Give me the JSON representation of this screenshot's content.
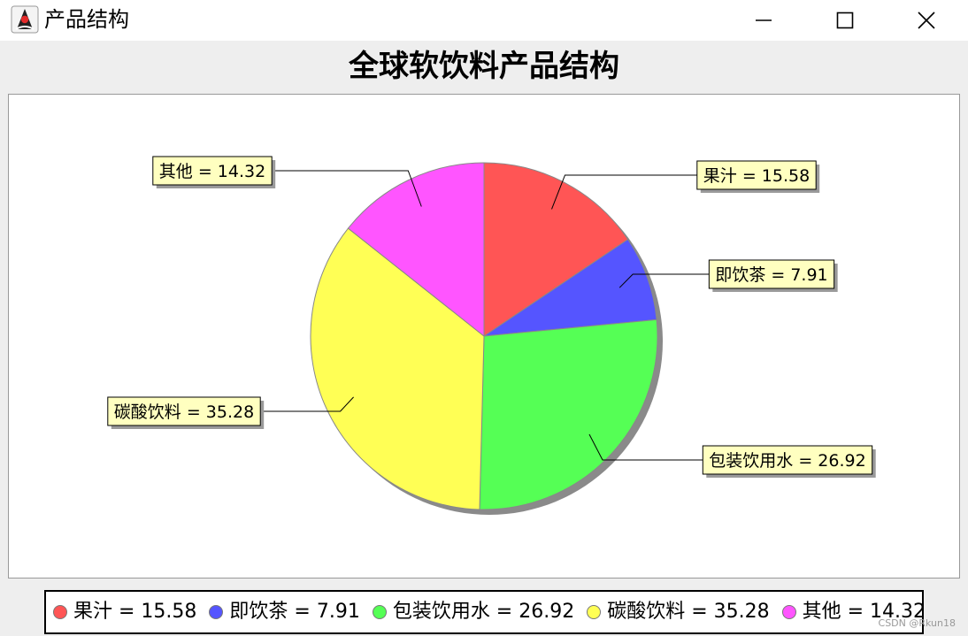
{
  "window": {
    "title": "产品结构",
    "icon": "java-duke-icon",
    "controls": [
      "minimize-icon",
      "maximize-icon",
      "close-icon"
    ]
  },
  "chart_data": {
    "type": "pie",
    "title": "全球软饮料产品结构",
    "categories": [
      "果汁",
      "即饮茶",
      "包装饮用水",
      "碳酸饮料",
      "其他"
    ],
    "values": [
      15.58,
      7.91,
      26.92,
      35.28,
      14.32
    ],
    "labels": [
      "果汁 = 15.58",
      "即饮茶 = 7.91",
      "包装饮用水 = 26.92",
      "碳酸饮料 = 35.28",
      "其他 = 14.32"
    ],
    "colors": [
      "#ff5555",
      "#5555ff",
      "#55ff55",
      "#ffff55",
      "#ff55ff"
    ],
    "start": "12 o'clock",
    "direction": "clockwise",
    "shadow": true,
    "legend_position": "bottom"
  },
  "watermark": "CSDN @Rkun18"
}
